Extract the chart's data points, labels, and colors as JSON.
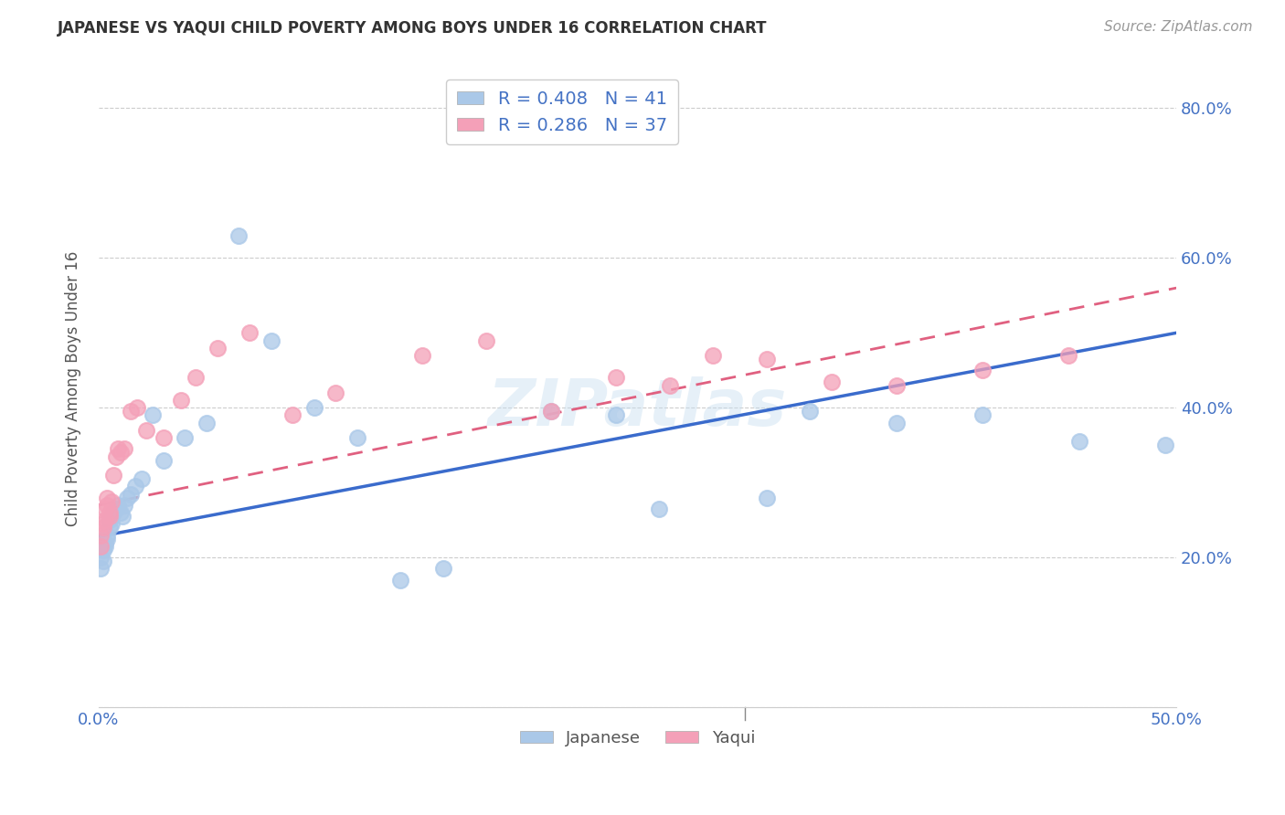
{
  "title": "JAPANESE VS YAQUI CHILD POVERTY AMONG BOYS UNDER 16 CORRELATION CHART",
  "source": "Source: ZipAtlas.com",
  "ylabel": "Child Poverty Among Boys Under 16",
  "xmin": 0.0,
  "xmax": 0.5,
  "ymin": 0.0,
  "ymax": 0.85,
  "japanese_R": 0.408,
  "japanese_N": 41,
  "yaqui_R": 0.286,
  "yaqui_N": 37,
  "japanese_color": "#aac8e8",
  "yaqui_color": "#f4a0b8",
  "japanese_line_color": "#3a6bcc",
  "yaqui_line_color": "#e06080",
  "japanese_x": [
    0.001,
    0.001,
    0.002,
    0.002,
    0.003,
    0.003,
    0.004,
    0.004,
    0.005,
    0.005,
    0.006,
    0.006,
    0.007,
    0.008,
    0.009,
    0.01,
    0.011,
    0.012,
    0.013,
    0.015,
    0.017,
    0.02,
    0.025,
    0.03,
    0.04,
    0.05,
    0.065,
    0.08,
    0.1,
    0.12,
    0.14,
    0.16,
    0.21,
    0.24,
    0.26,
    0.31,
    0.33,
    0.37,
    0.41,
    0.455,
    0.495
  ],
  "japanese_y": [
    0.2,
    0.185,
    0.195,
    0.21,
    0.215,
    0.22,
    0.23,
    0.225,
    0.24,
    0.25,
    0.245,
    0.255,
    0.26,
    0.265,
    0.27,
    0.26,
    0.255,
    0.27,
    0.28,
    0.285,
    0.295,
    0.305,
    0.39,
    0.33,
    0.36,
    0.38,
    0.63,
    0.49,
    0.4,
    0.36,
    0.17,
    0.185,
    0.395,
    0.39,
    0.265,
    0.28,
    0.395,
    0.38,
    0.39,
    0.355,
    0.35
  ],
  "yaqui_x": [
    0.001,
    0.001,
    0.002,
    0.002,
    0.003,
    0.003,
    0.004,
    0.004,
    0.005,
    0.005,
    0.006,
    0.007,
    0.008,
    0.009,
    0.01,
    0.012,
    0.015,
    0.018,
    0.022,
    0.03,
    0.038,
    0.045,
    0.055,
    0.07,
    0.09,
    0.11,
    0.15,
    0.18,
    0.21,
    0.24,
    0.265,
    0.285,
    0.31,
    0.34,
    0.37,
    0.41,
    0.45
  ],
  "yaqui_y": [
    0.23,
    0.215,
    0.245,
    0.24,
    0.25,
    0.265,
    0.27,
    0.28,
    0.255,
    0.26,
    0.275,
    0.31,
    0.335,
    0.345,
    0.34,
    0.345,
    0.395,
    0.4,
    0.37,
    0.36,
    0.41,
    0.44,
    0.48,
    0.5,
    0.39,
    0.42,
    0.47,
    0.49,
    0.395,
    0.44,
    0.43,
    0.47,
    0.465,
    0.435,
    0.43,
    0.45,
    0.47
  ],
  "jap_line_x0": 0.0,
  "jap_line_y0": 0.228,
  "jap_line_x1": 0.5,
  "jap_line_y1": 0.5,
  "yaq_line_x0": 0.0,
  "yaq_line_y0": 0.27,
  "yaq_line_x1": 0.5,
  "yaq_line_y1": 0.56,
  "watermark": "ZIPatlas",
  "background_color": "#ffffff",
  "grid_color": "#cccccc"
}
